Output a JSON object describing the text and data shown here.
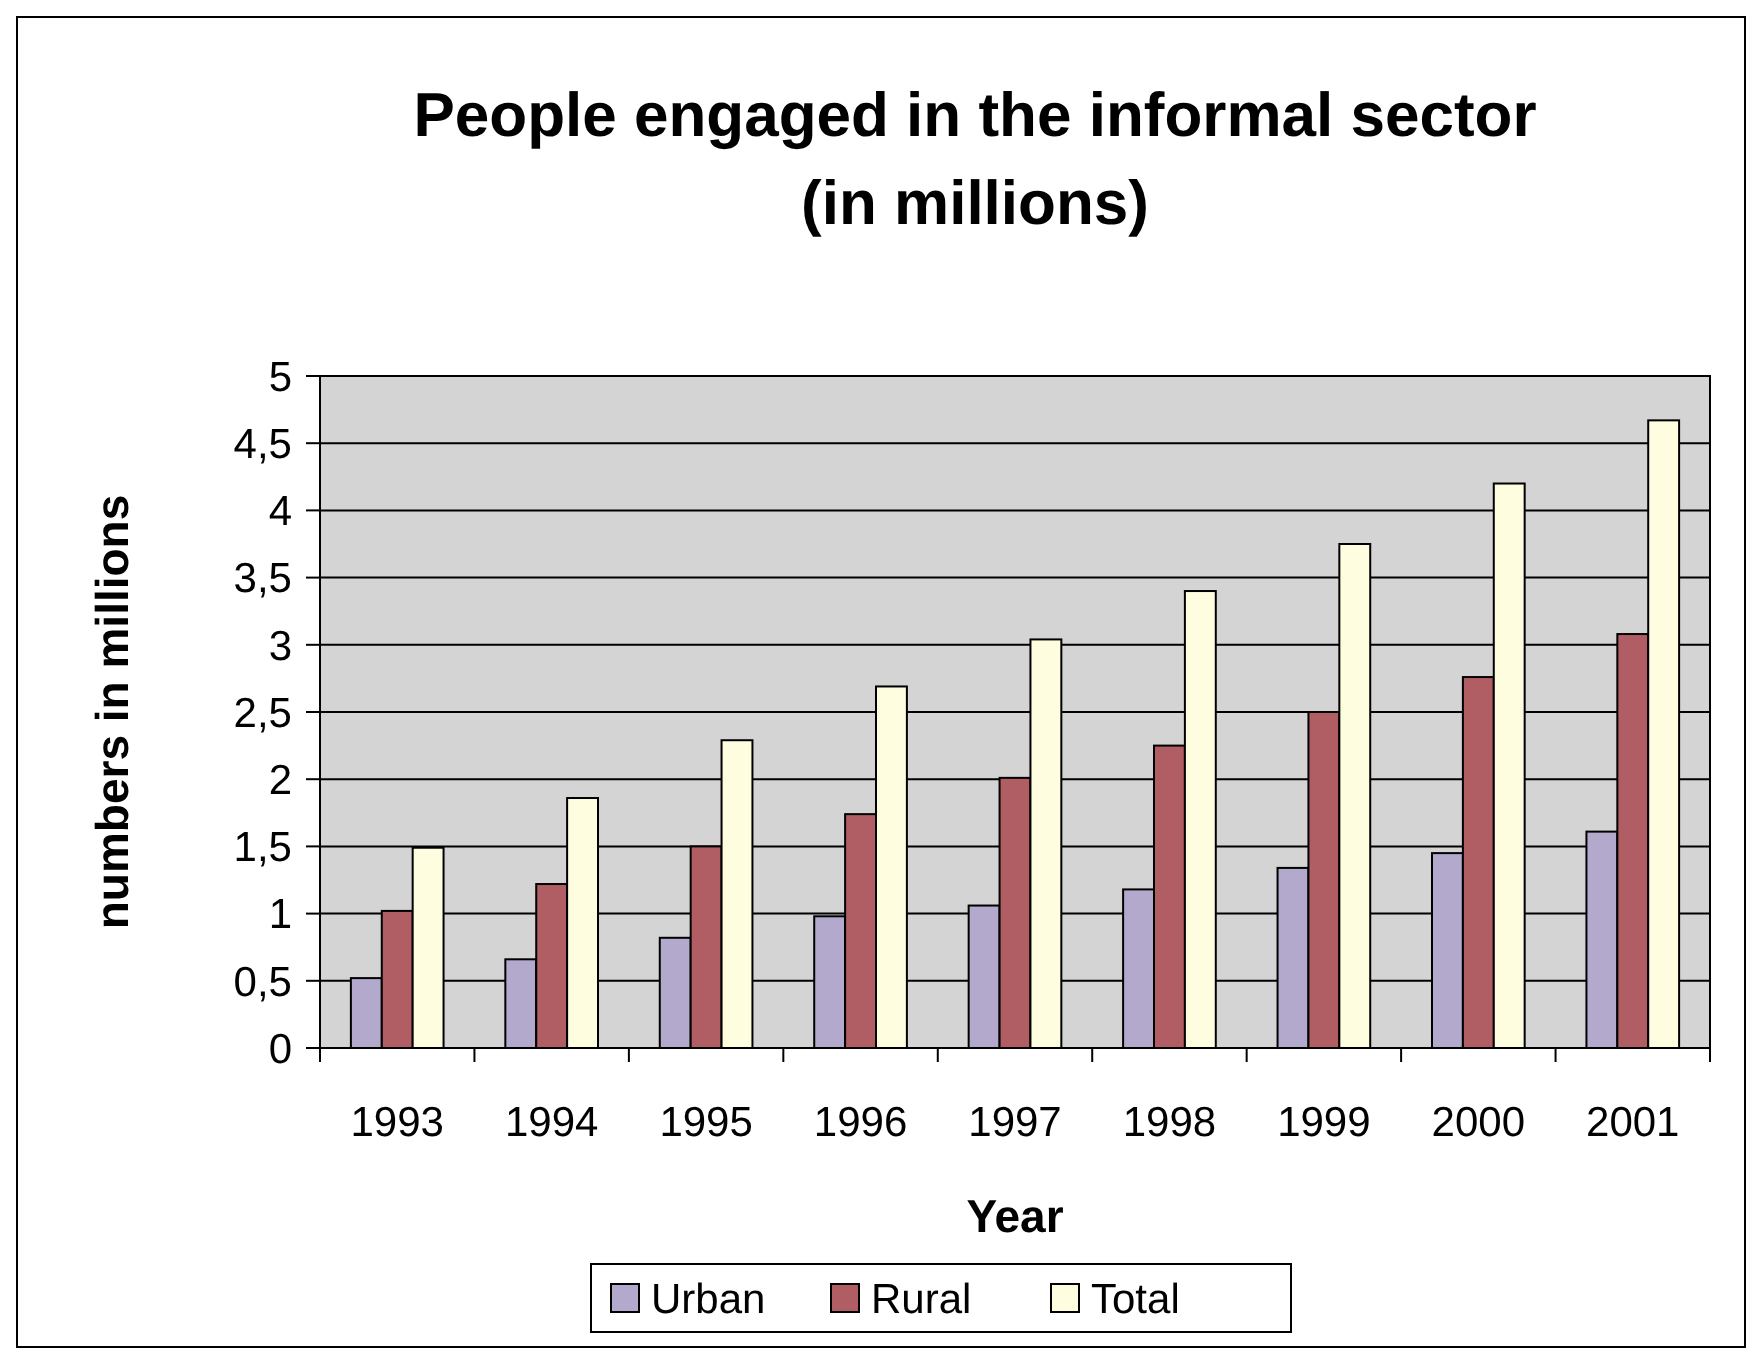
{
  "chart_data": {
    "type": "bar",
    "title": "People engaged in the informal sector\n(in millions)",
    "xlabel": "Year",
    "ylabel": "numbers in millions",
    "categories": [
      "1993",
      "1994",
      "1995",
      "1996",
      "1997",
      "1998",
      "1999",
      "2000",
      "2001"
    ],
    "series": [
      {
        "name": "Urban",
        "color": "#b3a9cd",
        "values": [
          0.52,
          0.66,
          0.82,
          0.98,
          1.06,
          1.18,
          1.34,
          1.45,
          1.61
        ]
      },
      {
        "name": "Rural",
        "color": "#b05e63",
        "values": [
          1.02,
          1.22,
          1.5,
          1.74,
          2.01,
          2.25,
          2.5,
          2.76,
          3.08
        ]
      },
      {
        "name": "Total",
        "color": "#fefde0",
        "values": [
          1.49,
          1.86,
          2.29,
          2.69,
          3.04,
          3.4,
          3.75,
          4.2,
          4.67
        ]
      }
    ],
    "ylim": [
      0,
      5
    ],
    "yticks": [
      0,
      {
        "value": 0.5,
        "label": "0,5"
      },
      1,
      {
        "value": 1.5,
        "label": "1,5"
      },
      2,
      {
        "value": 2.5,
        "label": "2,5"
      },
      3,
      {
        "value": 3.5,
        "label": "3,5"
      },
      4,
      {
        "value": 4.5,
        "label": "4,5"
      },
      5
    ],
    "grid": "y",
    "legend": "bottom"
  }
}
